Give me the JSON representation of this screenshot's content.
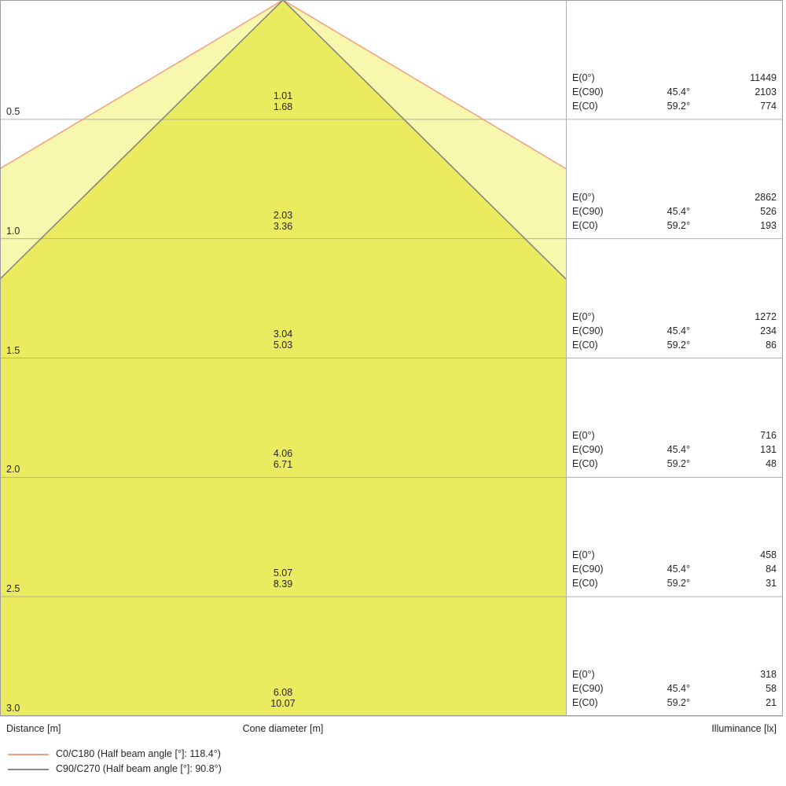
{
  "figure": {
    "footer": {
      "distance_axis": "Distance [m]",
      "cone_axis": "Cone diameter [m]",
      "illuminance_axis": "Illuminance [lx]"
    },
    "row_labels": {
      "e0": "E(0°)",
      "ec90": "E(C90)",
      "ec0": "E(C0)"
    },
    "legend": [
      {
        "label": "C0/C180 (Half beam angle [°]: 118.4°)",
        "color": "#f0a080"
      },
      {
        "label": "C90/C270 (Half beam angle [°]: 90.8°)",
        "color": "#8c8c86"
      }
    ],
    "rows": [
      {
        "distance": "0.5",
        "cone_c90": "1.01",
        "cone_c0": "1.68",
        "e0": "11449",
        "ec90_angle": "45.4°",
        "ec90": "2103",
        "ec0_angle": "59.2°",
        "ec0": "774"
      },
      {
        "distance": "1.0",
        "cone_c90": "2.03",
        "cone_c0": "3.36",
        "e0": "2862",
        "ec90_angle": "45.4°",
        "ec90": "526",
        "ec0_angle": "59.2°",
        "ec0": "193"
      },
      {
        "distance": "1.5",
        "cone_c90": "3.04",
        "cone_c0": "5.03",
        "e0": "1272",
        "ec90_angle": "45.4°",
        "ec90": "234",
        "ec0_angle": "59.2°",
        "ec0": "86"
      },
      {
        "distance": "2.0",
        "cone_c90": "4.06",
        "cone_c0": "6.71",
        "e0": "716",
        "ec90_angle": "45.4°",
        "ec90": "131",
        "ec0_angle": "59.2°",
        "ec0": "48"
      },
      {
        "distance": "2.5",
        "cone_c90": "5.07",
        "cone_c0": "8.39",
        "e0": "458",
        "ec90_angle": "45.4°",
        "ec90": "84",
        "ec0_angle": "59.2°",
        "ec0": "31"
      },
      {
        "distance": "3.0",
        "cone_c90": "6.08",
        "cone_c0": "10.07",
        "e0": "318",
        "ec90_angle": "45.4°",
        "ec90": "58",
        "ec0_angle": "59.2°",
        "ec0": "21"
      }
    ],
    "geometry": {
      "max_distance_m": 3.0,
      "c0_half_angle_deg": 59.2,
      "c90_half_angle_deg": 45.4
    },
    "colors": {
      "cone_outer_fill": "#f7f7ae",
      "cone_inner_fill": "#ebeb60",
      "c0_line": "#f0a080",
      "c90_line": "#80807a",
      "grid_line": "#b0b0b0",
      "border": "#9c9c9c"
    }
  },
  "chart_data": {
    "type": "area",
    "title": "Light cone diagram (beam spread and illuminance vs. distance)",
    "x": [
      0.5,
      1.0,
      1.5,
      2.0,
      2.5,
      3.0
    ],
    "xlabel": "Distance [m]",
    "ylabel": "Cone diameter [m]",
    "ylabel_right": "Illuminance [lx]",
    "axis_range_distance_m": [
      0,
      3.0
    ],
    "grid": true,
    "legend_position": "bottom-left",
    "legend": [
      "C0/C180 (Half beam angle [°]: 118.4°)",
      "C90/C270 (Half beam angle [°]: 90.8°)"
    ],
    "series": [
      {
        "name": "C0/C180 cone diameter [m]",
        "half_beam_angle_deg": 118.4,
        "values": [
          1.68,
          3.36,
          5.03,
          6.71,
          8.39,
          10.07
        ]
      },
      {
        "name": "C90/C270 cone diameter [m]",
        "half_beam_angle_deg": 90.8,
        "values": [
          1.01,
          2.03,
          3.04,
          4.06,
          5.07,
          6.08
        ]
      },
      {
        "name": "E(0°) illuminance [lx]",
        "values": [
          11449,
          2862,
          1272,
          716,
          458,
          318
        ]
      },
      {
        "name": "E(C90) illuminance [lx]",
        "angle_deg": 45.4,
        "values": [
          2103,
          526,
          234,
          131,
          84,
          58
        ]
      },
      {
        "name": "E(C0) illuminance [lx]",
        "angle_deg": 59.2,
        "values": [
          774,
          193,
          86,
          48,
          31,
          21
        ]
      }
    ]
  }
}
